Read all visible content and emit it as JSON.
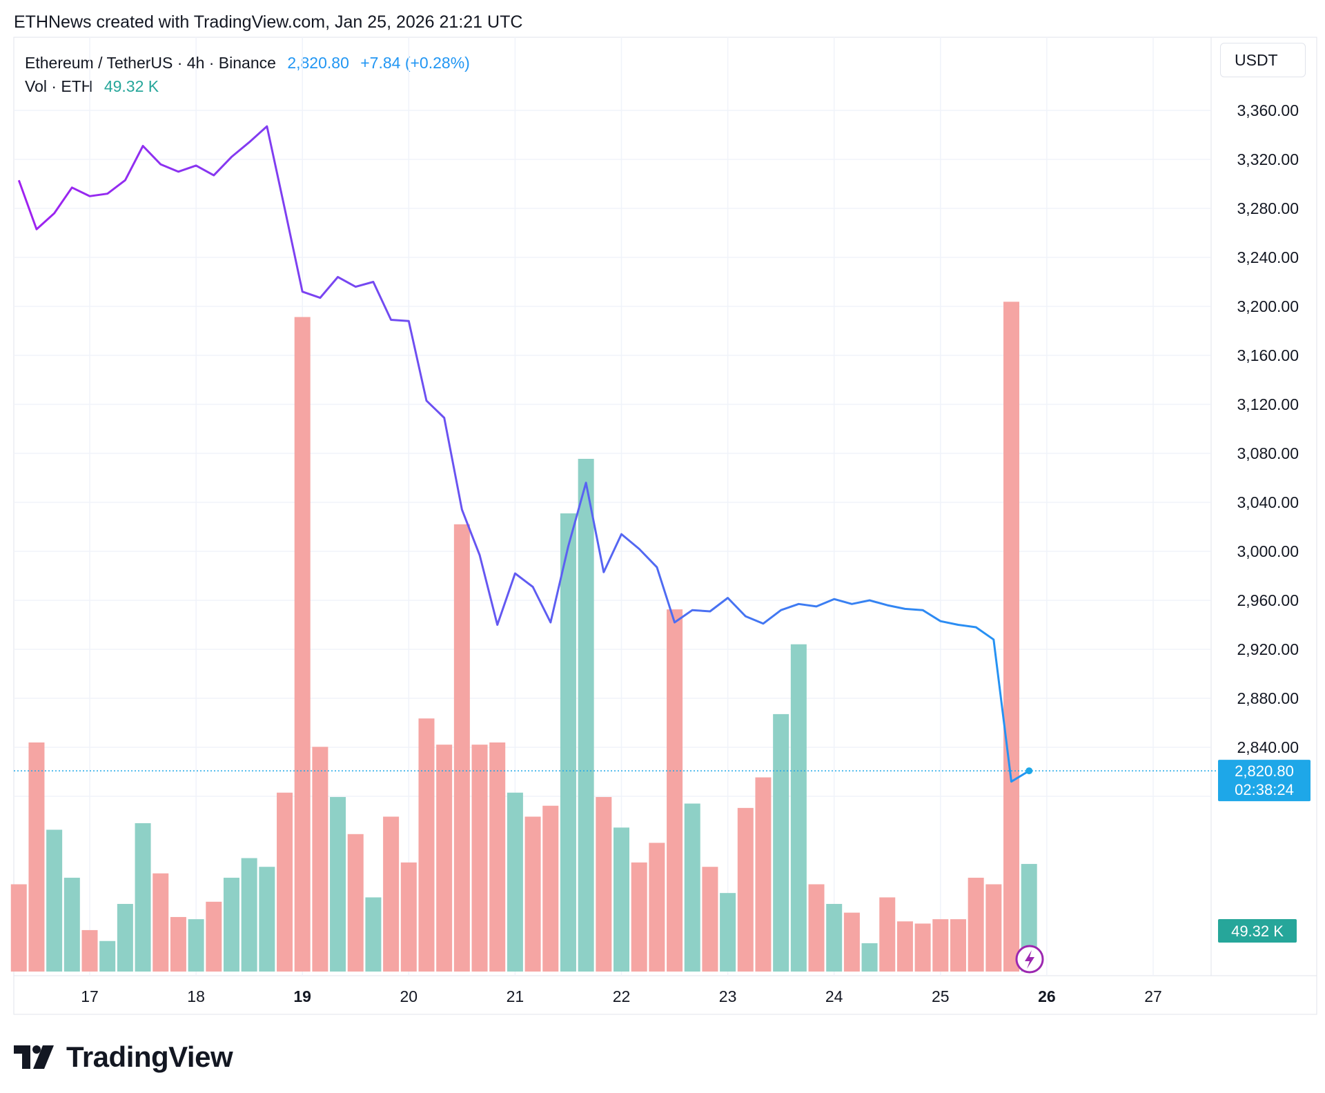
{
  "header": {
    "credit": "ETHNews created with TradingView.com, Jan 25, 2026 21:21 UTC"
  },
  "legend": {
    "symbol": "Ethereum / TetherUS · 4h · Binance",
    "price": "2,820.80",
    "change": "+7.84 (+0.28%)",
    "vol_label": "Vol · ETH",
    "vol_value": "49.32 K"
  },
  "axis": {
    "unit": "USDT"
  },
  "price_tag": {
    "price": "2,820.80",
    "countdown": "02:38:24",
    "volume": "49.32 K"
  },
  "brand": {
    "name": "TradingView"
  },
  "colors": {
    "line_start": "#a020f0",
    "line_end": "#2196f3",
    "vol_up": "#8ed0c6",
    "vol_down": "#f5a5a3",
    "price_tag": "#1ea7e8",
    "vol_tag": "#26a69a",
    "grid": "#f0f3fa"
  },
  "chart_data": {
    "type": "line",
    "x_tick_labels": [
      "17",
      "18",
      "19",
      "20",
      "21",
      "22",
      "23",
      "24",
      "25",
      "26",
      "27"
    ],
    "x_bold_ticks": [
      "19",
      "26"
    ],
    "y_ticks": [
      2840,
      2880,
      2920,
      2960,
      3000,
      3040,
      3080,
      3120,
      3160,
      3200,
      3240,
      3280,
      3320,
      3360
    ],
    "y_tick_labels": [
      "2,840.00",
      "2,880.00",
      "2,920.00",
      "2,960.00",
      "3,000.00",
      "3,040.00",
      "3,080.00",
      "3,120.00",
      "3,160.00",
      "3,200.00",
      "3,240.00",
      "3,280.00",
      "3,320.00",
      "3,360.00"
    ],
    "ylim": [
      2780,
      3400
    ],
    "x_range": [
      16.3,
      27.6
    ],
    "series": [
      {
        "values_x": [
          16.3333,
          16.5,
          16.6667,
          16.8333,
          17.0,
          17.1667,
          17.3333,
          17.5,
          17.6667,
          17.8333,
          18.0,
          18.1667,
          18.3333,
          18.5,
          18.6667,
          18.8333,
          19.0,
          19.1667,
          19.3333,
          19.5,
          19.6667,
          19.8333,
          20.0,
          20.1667,
          20.3333,
          20.5,
          20.6667,
          20.8333,
          21.0,
          21.1667,
          21.3333,
          21.5,
          21.6667,
          21.8333,
          22.0,
          22.1667,
          22.3333,
          22.5,
          22.6667,
          22.8333,
          23.0,
          23.1667,
          23.3333,
          23.5,
          23.6667,
          23.8333,
          24.0,
          24.1667,
          24.3333,
          24.5,
          24.6667,
          24.8333,
          25.0,
          25.1667,
          25.3333,
          25.5,
          25.6667,
          25.8333
        ],
        "values": [
          3303,
          3263,
          3276,
          3297,
          3290,
          3292,
          3303,
          3331,
          3316,
          3310,
          3315,
          3307,
          3322,
          3334,
          3347,
          3280,
          3212,
          3207,
          3224,
          3216,
          3220,
          3189,
          3188,
          3123,
          3109,
          3034,
          2997,
          2940,
          2982,
          2971,
          2942,
          3004,
          3056,
          2983,
          3014,
          3002,
          2987,
          2942,
          2952,
          2951,
          2962,
          2947,
          2941,
          2952,
          2957,
          2955,
          2961,
          2957,
          2960,
          2956,
          2953,
          2952,
          2943,
          2940,
          2938,
          2928,
          2812,
          2820.8
        ]
      }
    ],
    "volume": {
      "values_x": [
        16.3333,
        16.5,
        16.6667,
        16.8333,
        17.0,
        17.1667,
        17.3333,
        17.5,
        17.6667,
        17.8333,
        18.0,
        18.1667,
        18.3333,
        18.5,
        18.6667,
        18.8333,
        19.0,
        19.1667,
        19.3333,
        19.5,
        19.6667,
        19.8333,
        20.0,
        20.1667,
        20.3333,
        20.5,
        20.6667,
        20.8333,
        21.0,
        21.1667,
        21.3333,
        21.5,
        21.6667,
        21.8333,
        22.0,
        22.1667,
        22.3333,
        22.5,
        22.6667,
        22.8333,
        23.0,
        23.1667,
        23.3333,
        23.5,
        23.6667,
        23.8333,
        24.0,
        24.1667,
        24.3333,
        24.5,
        24.6667,
        24.8333,
        25.0,
        25.1667,
        25.3333,
        25.5,
        25.6667,
        25.8333
      ],
      "values_k": [
        40,
        105,
        65,
        43,
        19,
        14,
        31,
        68,
        45,
        25,
        24,
        32,
        43,
        52,
        48,
        82,
        300,
        103,
        80,
        63,
        34,
        71,
        50,
        116,
        104,
        205,
        104,
        105,
        82,
        71,
        76,
        210,
        235,
        80,
        66,
        50,
        59,
        166,
        77,
        48,
        36,
        75,
        89,
        118,
        150,
        40,
        31,
        27,
        13,
        34,
        23,
        22,
        24,
        24,
        43,
        40,
        307,
        49.32
      ],
      "direction": [
        "down",
        "down",
        "up",
        "up",
        "down",
        "up",
        "up",
        "up",
        "down",
        "down",
        "up",
        "down",
        "up",
        "up",
        "up",
        "down",
        "down",
        "down",
        "up",
        "down",
        "up",
        "down",
        "down",
        "down",
        "down",
        "down",
        "down",
        "down",
        "up",
        "down",
        "down",
        "up",
        "up",
        "down",
        "up",
        "down",
        "down",
        "down",
        "up",
        "down",
        "up",
        "down",
        "down",
        "up",
        "up",
        "down",
        "up",
        "down",
        "up",
        "down",
        "down",
        "down",
        "down",
        "down",
        "down",
        "down",
        "down",
        "up"
      ],
      "ylim_k": [
        0,
        380
      ]
    }
  }
}
